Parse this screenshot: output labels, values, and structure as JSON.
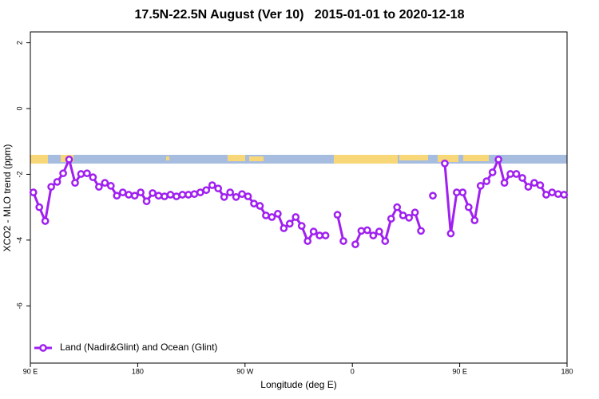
{
  "chart_data": {
    "type": "line",
    "title": "17.5N-22.5N August (Ver 10)   2015-01-01 to 2020-12-18",
    "xlabel": "Longitude (deg E)",
    "ylabel": "XCO2 - MLO trend (ppm)",
    "xlim": [
      90,
      540
    ],
    "xticks": [
      {
        "value": 90,
        "label": "90 E"
      },
      {
        "value": 180,
        "label": "180"
      },
      {
        "value": 270,
        "label": "90 W"
      },
      {
        "value": 360,
        "label": "0"
      },
      {
        "value": 450,
        "label": "90 E"
      },
      {
        "value": 540,
        "label": "180"
      }
    ],
    "ylim": [
      -7.74,
      2.33
    ],
    "yticks": [
      -6,
      -4,
      -2,
      0,
      2
    ],
    "legend": "bottomleft",
    "x": [
      92.5,
      97.5,
      102.5,
      107.5,
      112.5,
      117.5,
      122.5,
      127.5,
      132.5,
      137.5,
      142.5,
      147.5,
      152.5,
      157.5,
      162.5,
      167.5,
      172.5,
      177.5,
      182.5,
      187.5,
      192.5,
      197.5,
      202.5,
      207.5,
      212.5,
      217.5,
      222.5,
      227.5,
      232.5,
      237.5,
      242.5,
      247.5,
      252.5,
      257.5,
      262.5,
      267.5,
      272.5,
      277.5,
      282.5,
      287.5,
      292.5,
      297.5,
      302.5,
      307.5,
      312.5,
      317.5,
      322.5,
      327.5,
      332.5,
      337.5,
      342.5,
      347.5,
      352.5,
      357.5,
      362.5,
      367.5,
      372.5,
      377.5,
      382.5,
      387.5,
      392.5,
      397.5,
      402.5,
      407.5,
      412.5,
      417.5,
      422.5,
      427.5,
      432.5,
      437.5,
      442.5,
      447.5,
      452.5,
      457.5,
      462.5,
      467.5,
      472.5,
      477.5,
      482.5,
      487.5,
      492.5,
      497.5,
      502.5,
      507.5,
      512.5,
      517.5,
      522.5,
      527.5,
      532.5,
      537.5
    ],
    "series": [
      {
        "name": "Land (Nadir&Glint) and Ocean (Glint)",
        "color": "#a020f0",
        "values": [
          -2.55,
          -3.0,
          -3.42,
          -2.38,
          -2.23,
          -1.97,
          -1.55,
          -2.26,
          -1.99,
          -1.97,
          -2.09,
          -2.38,
          -2.26,
          -2.35,
          -2.65,
          -2.55,
          -2.62,
          -2.65,
          -2.55,
          -2.82,
          -2.57,
          -2.65,
          -2.67,
          -2.62,
          -2.67,
          -2.62,
          -2.62,
          -2.6,
          -2.55,
          -2.48,
          -2.33,
          -2.43,
          -2.69,
          -2.55,
          -2.69,
          -2.6,
          -2.67,
          -2.89,
          -2.96,
          -3.25,
          -3.3,
          -3.2,
          -3.64,
          -3.5,
          -3.3,
          -3.57,
          -4.03,
          -3.74,
          -3.86,
          -3.86,
          null,
          -3.23,
          -4.03,
          null,
          -4.13,
          -3.72,
          -3.7,
          -3.86,
          -3.74,
          -4.03,
          -3.35,
          -3.0,
          -3.25,
          -3.32,
          -3.16,
          -3.72,
          null,
          -2.65,
          null,
          -1.67,
          -3.8,
          -2.55,
          -2.55,
          -3.0,
          -3.4,
          -2.35,
          -2.21,
          -1.94,
          -1.55,
          -2.26,
          -1.99,
          -1.99,
          -2.11,
          -2.38,
          -2.26,
          -2.33,
          -2.62,
          -2.55,
          -2.6,
          -2.62
        ]
      }
    ]
  }
}
